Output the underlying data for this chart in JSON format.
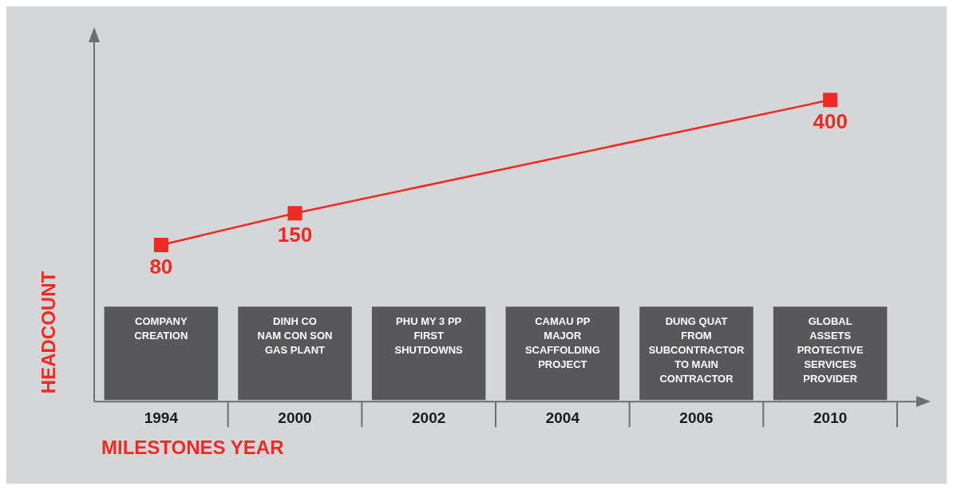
{
  "chart_data": {
    "type": "line",
    "xlabel": "MILESTONES YEAR",
    "ylabel": "HEADCOUNT",
    "categories": [
      "1994",
      "2000",
      "2002",
      "2004",
      "2006",
      "2010"
    ],
    "series": [
      {
        "color": "#ee2b24",
        "values": [
          80,
          150,
          null,
          null,
          null,
          400
        ]
      }
    ],
    "marker": "square",
    "line_style": "solid",
    "data_labels": true,
    "legend": false,
    "grid": false,
    "annotations": [
      "COMPANY\nCREATION",
      "DINH CO\nNAM CON SON\nGAS PLANT",
      "PHU MY 3 PP\nFIRST\nSHUTDOWNS",
      "CAMAU PP\nMAJOR\nSCAFFOLDING\nPROJECT",
      "DUNG QUAT\nFROM\nSUBCONTRACTOR\nTO MAIN\nCONTRACTOR",
      "GLOBAL\nASSETS\nPROTECTIVE\nSERVICES\nPROVIDER"
    ]
  }
}
